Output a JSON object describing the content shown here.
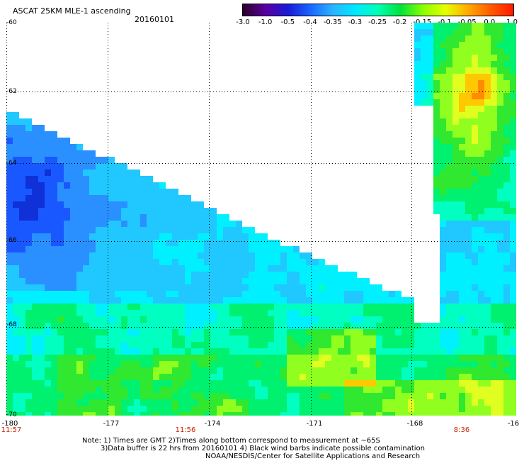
{
  "header": {
    "title": "ASCAT 25KM MLE-1 ascending",
    "date": "20160101"
  },
  "colorbar": {
    "ticks": [
      "-3.0",
      "-1.0",
      "-0.5",
      "-0.4",
      "-0.35",
      "-0.3",
      "-0.25",
      "-0.2",
      "-0.15",
      "-0.1",
      "-0.05",
      "0.0",
      "1.0"
    ],
    "colors": [
      "#2a0028",
      "#5a00a0",
      "#1a1ad8",
      "#1a66ff",
      "#2ab4ff",
      "#00e8ff",
      "#00ffb4",
      "#00e23c",
      "#8cff00",
      "#e6ff00",
      "#ffaa00",
      "#ff5a00",
      "#ff1a00"
    ]
  },
  "map": {
    "lat_labels": [
      "-60",
      "-62",
      "-64",
      "-66",
      "-68",
      "-70"
    ],
    "lon_labels": [
      "-180",
      "-177",
      "-174",
      "-171",
      "-168",
      "-16"
    ],
    "time_labels": [
      "11:57",
      "11:56",
      "8:36"
    ],
    "colors": {
      "missing": "#ffffff",
      "grid": "#000000",
      "time": "#cc2200"
    }
  },
  "footer": {
    "line1": "Note: 1) Times are GMT 2)Times along bottom correspond to measurement at ~65S",
    "line2": "3)Data buffer is 22 hrs from 20160101 4) Black wind barbs indicate possible contamination",
    "line3": "NOAA/NESDIS/Center for Satellite Applications and Research"
  }
}
